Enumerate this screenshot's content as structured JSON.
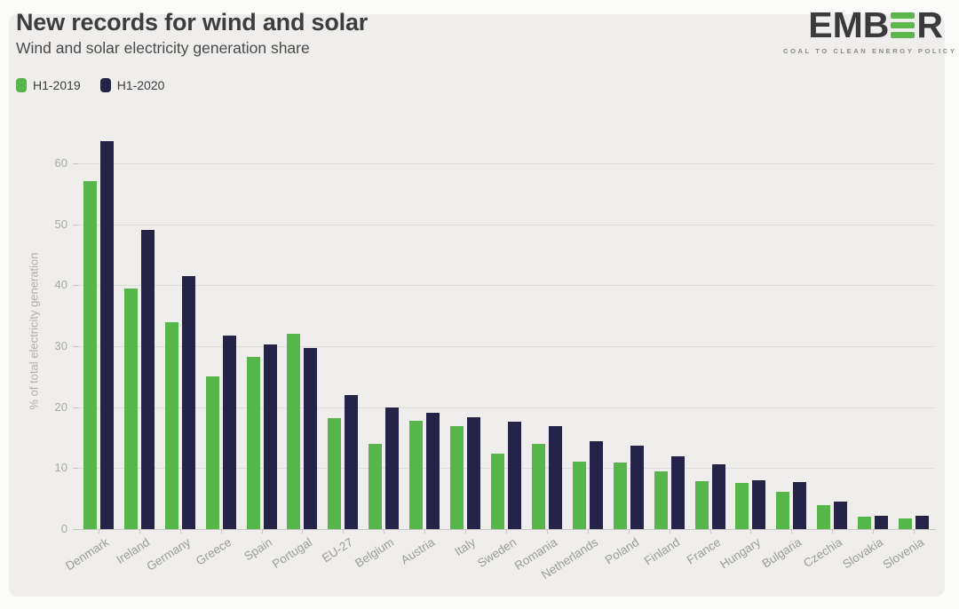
{
  "header": {
    "title": "New records for wind and solar",
    "subtitle": "Wind and solar electricity generation share"
  },
  "logo": {
    "left_text": "EMB",
    "right_text": "R",
    "tagline": "COAL TO CLEAN ENERGY POLICY",
    "green": "#5bb74b",
    "dark": "#3a3a3c"
  },
  "colors": {
    "card_background": "#efeeec",
    "page_background": "#fbfbfa",
    "gridline": "#dddddb",
    "axis_text": "#a8a8a5",
    "series_green": "#56b64a",
    "series_navy": "#252347"
  },
  "chart_data": {
    "type": "bar",
    "title": "New records for wind and solar",
    "subtitle": "Wind and solar electricity generation share",
    "xlabel": "",
    "ylabel": "% of total electricity generation",
    "ylim": [
      0,
      65
    ],
    "yticks": [
      0,
      10,
      20,
      30,
      40,
      50,
      60
    ],
    "grid": true,
    "legend_position": "top-left",
    "categories": [
      "Denmark",
      "Ireland",
      "Germany",
      "Greece",
      "Spain",
      "Portugal",
      "EU-27",
      "Belgium",
      "Austria",
      "Italy",
      "Sweden",
      "Romania",
      "Netherlands",
      "Poland",
      "Finland",
      "France",
      "Hungary",
      "Bulgaria",
      "Czechia",
      "Slovakia",
      "Slovenia"
    ],
    "series": [
      {
        "name": "H1-2019",
        "color": "#56b64a",
        "values": [
          57,
          39.4,
          33.9,
          25,
          28.2,
          32,
          18.2,
          14,
          17.8,
          16.9,
          12.4,
          14,
          11.1,
          10.9,
          9.5,
          7.9,
          7.6,
          6.1,
          4,
          2,
          1.7
        ]
      },
      {
        "name": "H1-2020",
        "color": "#252347",
        "values": [
          63.6,
          49,
          41.5,
          31.7,
          30.3,
          29.7,
          22,
          20,
          19.1,
          18.3,
          17.6,
          16.9,
          14.4,
          13.7,
          12,
          10.6,
          8,
          7.7,
          4.5,
          2.2,
          2.2
        ]
      }
    ]
  }
}
